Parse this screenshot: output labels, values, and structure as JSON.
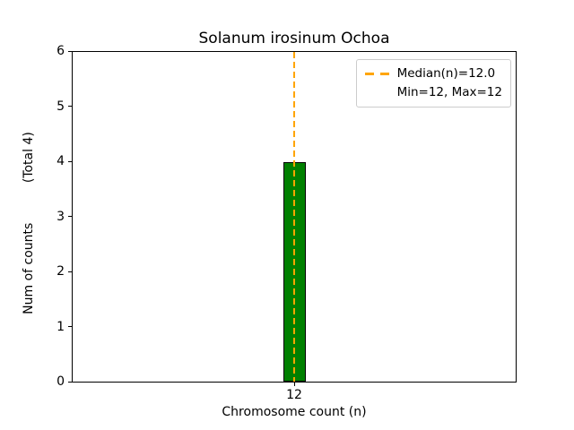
{
  "chart_data": {
    "type": "bar",
    "title": "Solanum irosinum Ochoa",
    "xlabel": "Chromosome count (n)",
    "ylabel": "Num of counts          (Total 4)",
    "categories": [
      "12"
    ],
    "values": [
      4
    ],
    "ylim": [
      0,
      6
    ],
    "yticks": [
      0,
      1,
      2,
      3,
      4,
      5,
      6
    ],
    "grid": false,
    "annotations": {
      "median": 12.0,
      "min": 12,
      "max": 12,
      "total_counts": 4,
      "median_line": {
        "x": "12",
        "style": "dashed-vertical"
      }
    },
    "legend": {
      "position": "upper right",
      "entries": [
        {
          "label": "Median(n)=12.0",
          "symbol": "dashed-line"
        },
        {
          "label": "Min=12, Max=12",
          "symbol": "none"
        }
      ]
    },
    "colors": {
      "background": "#ffffff",
      "bar_fill": "#008000",
      "bar_edge": "#000000",
      "median_line": "#FFA500",
      "axes": "#000000",
      "legend_border": "#cccccc",
      "text": "#000000"
    }
  }
}
